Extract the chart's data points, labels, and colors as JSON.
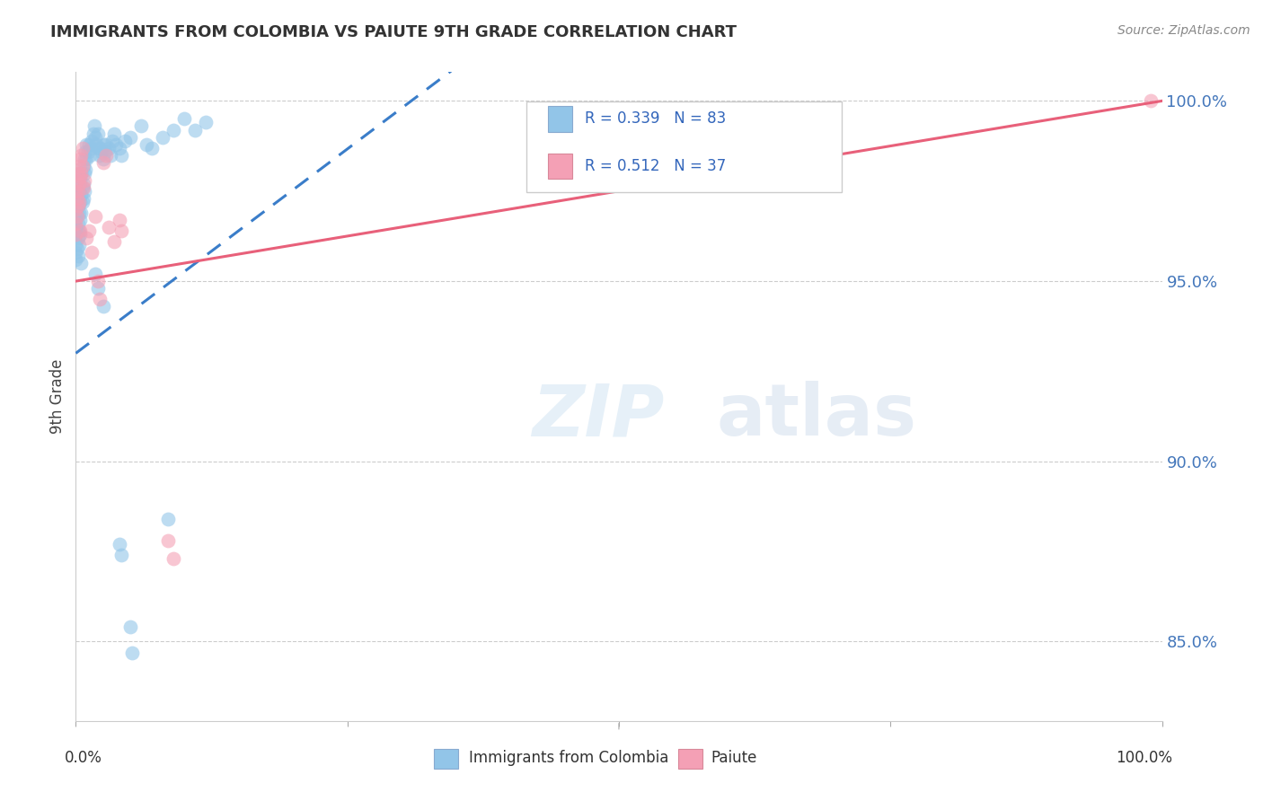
{
  "title": "IMMIGRANTS FROM COLOMBIA VS PAIUTE 9TH GRADE CORRELATION CHART",
  "source": "Source: ZipAtlas.com",
  "ylabel": "9th Grade",
  "xlim": [
    0.0,
    1.0
  ],
  "ylim": [
    0.828,
    1.008
  ],
  "y_ticks": [
    0.85,
    0.9,
    0.95,
    1.0
  ],
  "y_tick_labels": [
    "85.0%",
    "90.0%",
    "95.0%",
    "100.0%"
  ],
  "colombia_color": "#92C5E8",
  "paiute_color": "#F4A0B5",
  "colombia_line_color": "#3A7DC9",
  "paiute_line_color": "#E8607A",
  "watermark_zip": "ZIP",
  "watermark_atlas": "atlas",
  "colombia_R": 0.339,
  "colombia_N": 83,
  "paiute_R": 0.512,
  "paiute_N": 37,
  "colombia_points": [
    [
      0.0,
      0.97
    ],
    [
      0.0,
      0.974
    ],
    [
      0.0,
      0.967
    ],
    [
      0.0,
      0.965
    ],
    [
      0.0,
      0.963
    ],
    [
      0.0,
      0.96
    ],
    [
      0.0,
      0.958
    ],
    [
      0.0,
      0.956
    ],
    [
      0.001,
      0.973
    ],
    [
      0.001,
      0.969
    ],
    [
      0.001,
      0.964
    ],
    [
      0.001,
      0.959
    ],
    [
      0.002,
      0.971
    ],
    [
      0.002,
      0.966
    ],
    [
      0.002,
      0.962
    ],
    [
      0.002,
      0.957
    ],
    [
      0.003,
      0.975
    ],
    [
      0.003,
      0.969
    ],
    [
      0.003,
      0.964
    ],
    [
      0.003,
      0.96
    ],
    [
      0.004,
      0.978
    ],
    [
      0.004,
      0.972
    ],
    [
      0.004,
      0.967
    ],
    [
      0.004,
      0.963
    ],
    [
      0.005,
      0.98
    ],
    [
      0.005,
      0.974
    ],
    [
      0.005,
      0.969
    ],
    [
      0.005,
      0.955
    ],
    [
      0.006,
      0.976
    ],
    [
      0.006,
      0.972
    ],
    [
      0.007,
      0.982
    ],
    [
      0.007,
      0.977
    ],
    [
      0.007,
      0.973
    ],
    [
      0.008,
      0.984
    ],
    [
      0.008,
      0.98
    ],
    [
      0.008,
      0.975
    ],
    [
      0.009,
      0.986
    ],
    [
      0.009,
      0.981
    ],
    [
      0.01,
      0.988
    ],
    [
      0.01,
      0.984
    ],
    [
      0.011,
      0.986
    ],
    [
      0.012,
      0.988
    ],
    [
      0.013,
      0.985
    ],
    [
      0.014,
      0.987
    ],
    [
      0.015,
      0.989
    ],
    [
      0.016,
      0.991
    ],
    [
      0.017,
      0.993
    ],
    [
      0.018,
      0.99
    ],
    [
      0.019,
      0.988
    ],
    [
      0.02,
      0.991
    ],
    [
      0.021,
      0.987
    ],
    [
      0.022,
      0.985
    ],
    [
      0.023,
      0.987
    ],
    [
      0.024,
      0.986
    ],
    [
      0.025,
      0.984
    ],
    [
      0.026,
      0.988
    ],
    [
      0.027,
      0.986
    ],
    [
      0.028,
      0.988
    ],
    [
      0.03,
      0.987
    ],
    [
      0.032,
      0.985
    ],
    [
      0.034,
      0.989
    ],
    [
      0.035,
      0.991
    ],
    [
      0.037,
      0.988
    ],
    [
      0.04,
      0.987
    ],
    [
      0.042,
      0.985
    ],
    [
      0.045,
      0.989
    ],
    [
      0.05,
      0.99
    ],
    [
      0.06,
      0.993
    ],
    [
      0.065,
      0.988
    ],
    [
      0.07,
      0.987
    ],
    [
      0.08,
      0.99
    ],
    [
      0.085,
      0.884
    ],
    [
      0.09,
      0.992
    ],
    [
      0.1,
      0.995
    ],
    [
      0.11,
      0.992
    ],
    [
      0.12,
      0.994
    ],
    [
      0.018,
      0.952
    ],
    [
      0.02,
      0.948
    ],
    [
      0.025,
      0.943
    ],
    [
      0.04,
      0.877
    ],
    [
      0.042,
      0.874
    ],
    [
      0.05,
      0.854
    ],
    [
      0.052,
      0.847
    ]
  ],
  "paiute_points": [
    [
      0.0,
      0.975
    ],
    [
      0.0,
      0.97
    ],
    [
      0.0,
      0.966
    ],
    [
      0.0,
      0.963
    ],
    [
      0.001,
      0.978
    ],
    [
      0.001,
      0.973
    ],
    [
      0.001,
      0.968
    ],
    [
      0.002,
      0.98
    ],
    [
      0.002,
      0.975
    ],
    [
      0.002,
      0.971
    ],
    [
      0.003,
      0.982
    ],
    [
      0.003,
      0.977
    ],
    [
      0.003,
      0.972
    ],
    [
      0.004,
      0.984
    ],
    [
      0.004,
      0.979
    ],
    [
      0.004,
      0.964
    ],
    [
      0.005,
      0.985
    ],
    [
      0.005,
      0.98
    ],
    [
      0.006,
      0.987
    ],
    [
      0.006,
      0.982
    ],
    [
      0.007,
      0.976
    ],
    [
      0.008,
      0.978
    ],
    [
      0.01,
      0.962
    ],
    [
      0.012,
      0.964
    ],
    [
      0.015,
      0.958
    ],
    [
      0.018,
      0.968
    ],
    [
      0.02,
      0.95
    ],
    [
      0.022,
      0.945
    ],
    [
      0.025,
      0.983
    ],
    [
      0.028,
      0.985
    ],
    [
      0.03,
      0.965
    ],
    [
      0.035,
      0.961
    ],
    [
      0.04,
      0.967
    ],
    [
      0.042,
      0.964
    ],
    [
      0.085,
      0.878
    ],
    [
      0.09,
      0.873
    ],
    [
      0.99,
      1.0
    ]
  ]
}
